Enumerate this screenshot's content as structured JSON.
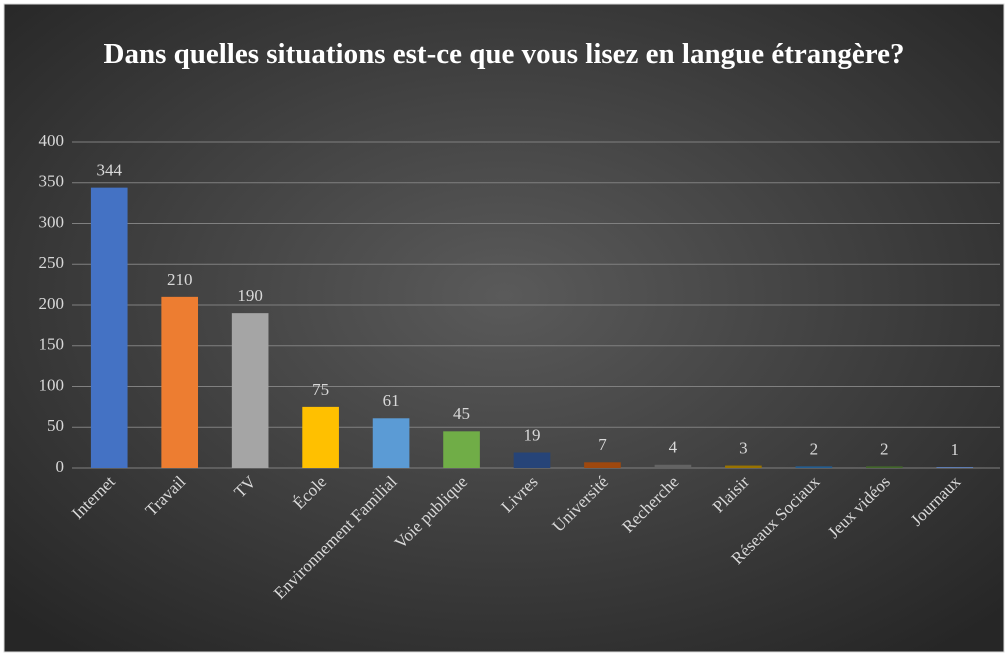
{
  "chart_data": {
    "type": "bar",
    "title": "Dans quelles situations est-ce que vous lisez en langue étrangère?",
    "categories": [
      "Internet",
      "Travail",
      "TV",
      "École",
      "Environnement Familial",
      "Voie publique",
      "Livres",
      "Université",
      "Recherche",
      "Plaisir",
      "Réseaux Sociaux",
      "Jeux vidéos",
      "Journaux"
    ],
    "values": [
      344,
      210,
      190,
      75,
      61,
      45,
      19,
      7,
      4,
      3,
      2,
      2,
      1
    ],
    "colors": [
      "#4472c4",
      "#ed7d31",
      "#a5a5a5",
      "#ffc000",
      "#5b9bd5",
      "#70ad47",
      "#264478",
      "#9e480e",
      "#636363",
      "#997300",
      "#255e91",
      "#43682b",
      "#698ed0"
    ],
    "ylim": [
      0,
      400
    ],
    "yticks": [
      0,
      50,
      100,
      150,
      200,
      250,
      300,
      350,
      400
    ],
    "grid": true
  }
}
